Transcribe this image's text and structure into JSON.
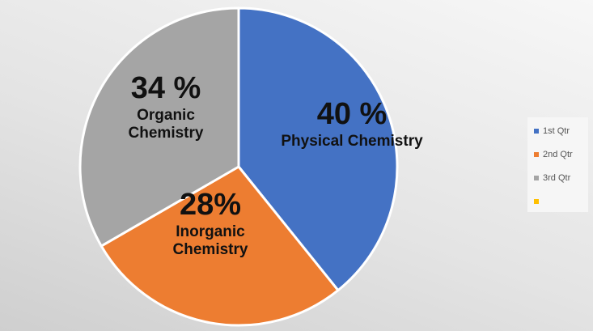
{
  "chart_data": {
    "type": "pie",
    "categories": [
      "1st Qtr",
      "2nd Qtr",
      "3rd Qtr",
      null
    ],
    "values": [
      40,
      28,
      34,
      null
    ],
    "value_labels": [
      "40 %",
      "28%",
      "34 %",
      null
    ],
    "slice_labels": [
      "Physical Chemistry",
      "Inorganic Chemistry",
      "Organic Chemistry",
      null
    ],
    "colors": [
      "#4472c4",
      "#ed7d31",
      "#a5a5a5",
      "#ffc000"
    ],
    "legend": "right"
  }
}
